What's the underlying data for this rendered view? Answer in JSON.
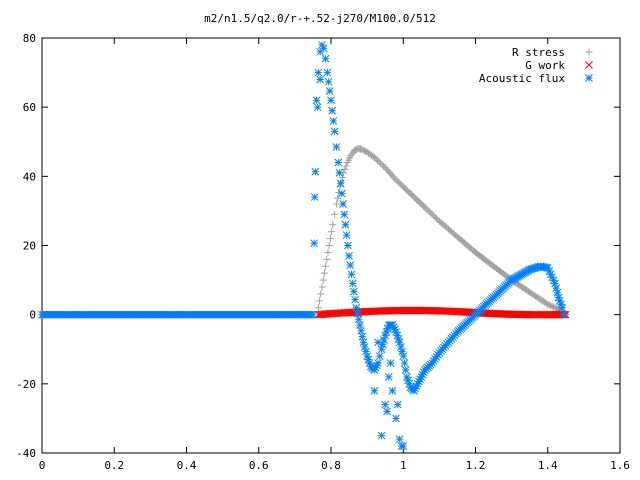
{
  "chart_data": {
    "type": "scatter",
    "title": "m2/n1.5/q2.0/r-+.52-j270/M100.0/512",
    "xlabel": "",
    "ylabel": "",
    "xlim": [
      0,
      1.6
    ],
    "ylim": [
      -40,
      80
    ],
    "x_ticks": [
      "0",
      "0.2",
      "0.4",
      "0.6",
      "0.8",
      "1",
      "1.2",
      "1.4",
      "1.6"
    ],
    "y_ticks": [
      "-40",
      "-20",
      "0",
      "20",
      "40",
      "60",
      "80"
    ],
    "x_tick_values": [
      0,
      0.2,
      0.4,
      0.6,
      0.8,
      1.0,
      1.2,
      1.4,
      1.6
    ],
    "y_tick_values": [
      -40,
      -20,
      0,
      20,
      40,
      60,
      80
    ],
    "grid": false,
    "legend_position": "top-right",
    "series": [
      {
        "name": "R stress",
        "marker": "plus",
        "color": "#a0a0a0",
        "x": [
          0.765,
          0.775,
          0.785,
          0.795,
          0.805,
          0.815,
          0.825,
          0.835,
          0.845,
          0.855,
          0.865,
          0.875,
          0.885,
          0.9,
          0.92,
          0.95,
          0.98,
          1.0,
          1.03,
          1.06,
          1.1,
          1.15,
          1.2,
          1.25,
          1.3,
          1.35,
          1.4,
          1.42,
          1.44,
          1.45
        ],
        "y": [
          2,
          8,
          14,
          20,
          26,
          32,
          37,
          41,
          44,
          46,
          47.5,
          48,
          47.8,
          47,
          45.5,
          42.5,
          39,
          37,
          34,
          31,
          27,
          22.5,
          18,
          14,
          10,
          6.5,
          3,
          2,
          1,
          0
        ]
      },
      {
        "name": "G work",
        "marker": "cross",
        "color": "#ff0000",
        "x": [
          0.765,
          0.8,
          0.85,
          0.9,
          0.95,
          1.0,
          1.05,
          1.1,
          1.15,
          1.2,
          1.25,
          1.3,
          1.35,
          1.4,
          1.45
        ],
        "y": [
          0,
          0.3,
          0.6,
          0.9,
          1.1,
          1.2,
          1.2,
          1.1,
          0.9,
          0.6,
          0.3,
          0.1,
          0,
          0,
          0
        ]
      },
      {
        "name": "Acoustic flux",
        "marker": "star",
        "color": "#0080ff",
        "x": [
          0,
          0.1,
          0.2,
          0.3,
          0.4,
          0.5,
          0.6,
          0.7,
          0.75,
          0.76,
          0.765,
          0.77,
          0.775,
          0.78,
          0.785,
          0.79,
          0.8,
          0.81,
          0.82,
          0.83,
          0.84,
          0.85,
          0.86,
          0.87,
          0.88,
          0.89,
          0.9,
          0.91,
          0.92,
          0.93,
          0.94,
          0.95,
          0.96,
          0.97,
          0.98,
          0.99,
          1.0,
          1.01,
          1.02,
          1.03,
          1.04,
          1.05,
          1.06,
          1.08,
          1.1,
          1.15,
          1.2,
          1.25,
          1.3,
          1.35,
          1.38,
          1.4,
          1.42,
          1.43,
          1.44,
          1.445,
          0.755,
          0.763,
          0.77,
          0.94,
          0.95,
          0.96,
          0.97,
          0.98,
          0.99,
          1.0,
          0.92,
          0.93,
          0.955,
          0.965,
          0.985,
          0.995
        ],
        "y": [
          0,
          0,
          0,
          0,
          0,
          0,
          0,
          0,
          0,
          62,
          70,
          76,
          78,
          77,
          74,
          70,
          62,
          53,
          44,
          35,
          26,
          17,
          9,
          2,
          -3,
          -8,
          -12,
          -15,
          -16,
          -14,
          -10,
          -6,
          -3,
          -3,
          -5,
          -8,
          -12,
          -18,
          -21,
          -22,
          -20,
          -18,
          -16,
          -14,
          -11,
          -5,
          0,
          5,
          10,
          13,
          14,
          13.5,
          9,
          5,
          2,
          0,
          34,
          60,
          68,
          -35,
          -26,
          -18,
          -22,
          -30,
          -36,
          -38,
          -22,
          -8,
          -28,
          -14,
          -26,
          -38
        ]
      }
    ]
  }
}
